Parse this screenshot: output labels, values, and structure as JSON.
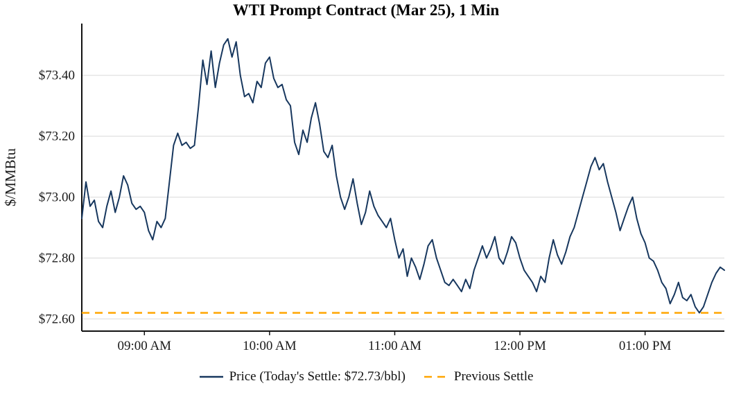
{
  "chart_data": {
    "type": "line",
    "title": "WTI Prompt Contract (Mar 25), 1 Min",
    "ylabel": "$/MMBtu",
    "xlabel": "",
    "x_unit": "minutes since 08:30 AM",
    "xlim": [
      0,
      308
    ],
    "ylim": [
      72.56,
      73.57
    ],
    "grid": "horizontal",
    "legend_position": "bottom",
    "yticks": [
      {
        "value": 72.6,
        "label": "$72.60"
      },
      {
        "value": 72.8,
        "label": "$72.80"
      },
      {
        "value": 73.0,
        "label": "$73.00"
      },
      {
        "value": 73.2,
        "label": "$73.20"
      },
      {
        "value": 73.4,
        "label": "$73.40"
      }
    ],
    "xticks": [
      {
        "value": 30,
        "label": "09:00 AM"
      },
      {
        "value": 90,
        "label": "10:00 AM"
      },
      {
        "value": 150,
        "label": "11:00 AM"
      },
      {
        "value": 210,
        "label": "12:00 PM"
      },
      {
        "value": 270,
        "label": "01:00 PM"
      }
    ],
    "todays_settle_text": "$72.73/bbl",
    "series": [
      {
        "name": "Price (Today's Settle: $72.73/bbl)",
        "color": "#17375e",
        "style": "solid",
        "x_start": 0,
        "x_step": 2,
        "y": [
          72.93,
          73.05,
          72.97,
          72.99,
          72.92,
          72.9,
          72.97,
          73.02,
          72.95,
          73.0,
          73.07,
          73.04,
          72.98,
          72.96,
          72.97,
          72.95,
          72.89,
          72.86,
          72.92,
          72.9,
          72.93,
          73.05,
          73.17,
          73.21,
          73.17,
          73.18,
          73.16,
          73.17,
          73.3,
          73.45,
          73.37,
          73.48,
          73.36,
          73.44,
          73.5,
          73.52,
          73.46,
          73.51,
          73.4,
          73.33,
          73.34,
          73.31,
          73.38,
          73.36,
          73.44,
          73.46,
          73.39,
          73.36,
          73.37,
          73.32,
          73.3,
          73.18,
          73.14,
          73.22,
          73.18,
          73.26,
          73.31,
          73.24,
          73.15,
          73.13,
          73.17,
          73.07,
          73.0,
          72.96,
          73.0,
          73.06,
          72.98,
          72.91,
          72.95,
          73.02,
          72.97,
          72.94,
          72.92,
          72.9,
          72.93,
          72.86,
          72.8,
          72.83,
          72.74,
          72.8,
          72.77,
          72.73,
          72.78,
          72.84,
          72.86,
          72.8,
          72.76,
          72.72,
          72.71,
          72.73,
          72.71,
          72.69,
          72.73,
          72.7,
          72.76,
          72.8,
          72.84,
          72.8,
          72.83,
          72.87,
          72.8,
          72.78,
          72.82,
          72.87,
          72.85,
          72.8,
          72.76,
          72.74,
          72.72,
          72.69,
          72.74,
          72.72,
          72.8,
          72.86,
          72.81,
          72.78,
          72.82,
          72.87,
          72.9,
          72.95,
          73.0,
          73.05,
          73.1,
          73.13,
          73.09,
          73.11,
          73.05,
          73.0,
          72.95,
          72.89,
          72.93,
          72.97,
          73.0,
          72.93,
          72.88,
          72.85,
          72.8,
          72.79,
          72.76,
          72.72,
          72.7,
          72.65,
          72.68,
          72.72,
          72.67,
          72.66,
          72.68,
          72.64,
          72.62,
          72.64,
          72.68,
          72.72,
          72.75,
          72.77,
          72.76
        ]
      },
      {
        "name": "Previous Settle",
        "color": "#ffa500",
        "style": "dashed",
        "value": 72.62
      }
    ]
  },
  "legend": {
    "price_label": "Price (Today's Settle: $72.73/bbl)",
    "prev_settle_label": "Previous Settle"
  }
}
